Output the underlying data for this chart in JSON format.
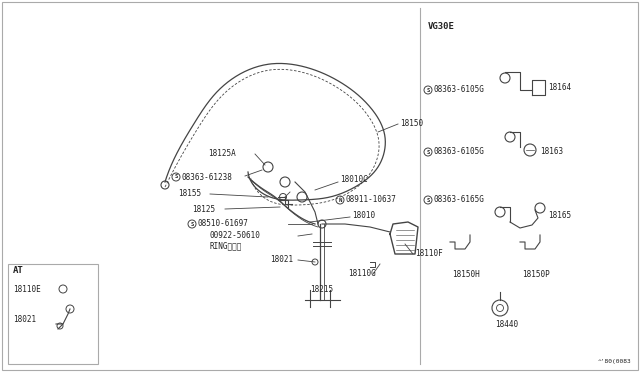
{
  "bg_color": "#ffffff",
  "border_color": "#aaaaaa",
  "line_color": "#444444",
  "text_color": "#222222",
  "fig_width": 6.4,
  "fig_height": 3.72,
  "dpi": 100,
  "vg30e_label": "VG30E",
  "at_label": "AT",
  "diagram_note": "^'80(0083"
}
